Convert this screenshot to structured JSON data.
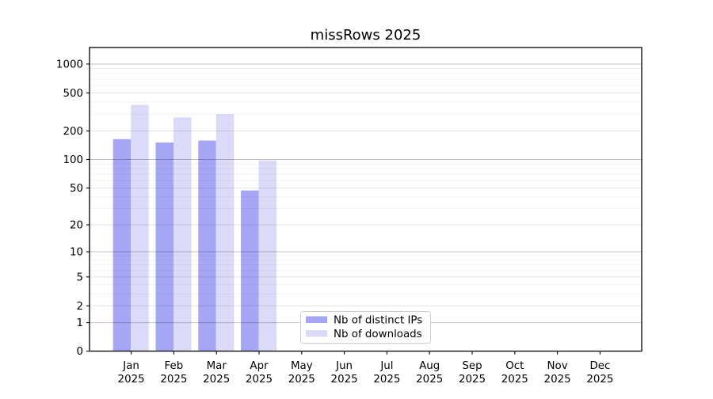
{
  "chart_data": {
    "type": "bar",
    "title": "missRows 2025",
    "year_label": "2025",
    "categories": [
      "Jan",
      "Feb",
      "Mar",
      "Apr",
      "May",
      "Jun",
      "Jul",
      "Aug",
      "Sep",
      "Oct",
      "Nov",
      "Dec"
    ],
    "series": [
      {
        "key": "distinct-ips",
        "name": "Nb of distinct IPs",
        "color": "#a6a6f6",
        "values": [
          164,
          151,
          158,
          47,
          null,
          null,
          null,
          null,
          null,
          null,
          null,
          null
        ]
      },
      {
        "key": "downloads",
        "name": "Nb of downloads",
        "color": "#dbdbf9",
        "values": [
          375,
          277,
          300,
          98,
          null,
          null,
          null,
          null,
          null,
          null,
          null,
          null
        ]
      }
    ],
    "y_axis": {
      "scale": "log1p",
      "ticks": [
        1000,
        500,
        200,
        100,
        50,
        20,
        10,
        5,
        2,
        1,
        0
      ],
      "range": [
        0,
        1500
      ]
    },
    "grid": {
      "orientation": "horizontal",
      "major_lines": [
        1,
        10,
        100,
        1000
      ],
      "labeled_lines": [
        2,
        5,
        20,
        50,
        200,
        500
      ],
      "minor_lines": [
        3,
        4,
        6,
        7,
        8,
        9,
        30,
        40,
        60,
        70,
        80,
        90,
        300,
        400,
        600,
        700,
        800,
        900
      ]
    },
    "legend": {
      "position": "inside-bottom-center"
    }
  },
  "colors": {
    "background": "#ffffff",
    "axis": "#000000",
    "grid_major": "#c3c3c3",
    "grid_labeled": "#e1e1e1",
    "grid_minor": "#f2f2f2"
  }
}
